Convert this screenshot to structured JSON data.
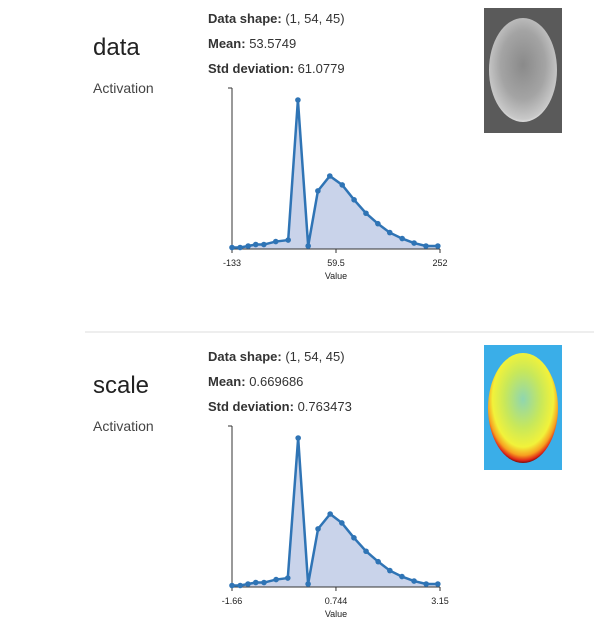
{
  "panels": [
    {
      "name": "data",
      "kind": "Activation",
      "stats": [
        {
          "label": "Data shape:",
          "value": "(1, 54, 45)"
        },
        {
          "label": "Mean:",
          "value": "53.5749"
        },
        {
          "label": "Std deviation:",
          "value": "61.0779"
        }
      ],
      "histogram": {
        "type": "line",
        "x_label": "Value",
        "x": [
          -133,
          -118,
          -103,
          -89,
          -74,
          -52,
          -29,
          -11,
          8,
          26,
          48,
          71,
          93,
          115,
          137,
          159,
          182,
          204,
          226,
          248
        ],
        "values": [
          1,
          1,
          2,
          3,
          3,
          5,
          6,
          100,
          2,
          39,
          49,
          43,
          33,
          24,
          17,
          11,
          7,
          4,
          2,
          2
        ],
        "xlim": [
          -133,
          252
        ],
        "xticks": [
          -133,
          59.5,
          252
        ],
        "ylim": [
          0,
          100
        ],
        "color": "#2f74b5",
        "fill": "#c9d3ea"
      }
    },
    {
      "name": "scale",
      "kind": "Activation",
      "stats": [
        {
          "label": "Data shape:",
          "value": "(1, 54, 45)"
        },
        {
          "label": "Mean:",
          "value": "0.669686"
        },
        {
          "label": "Std deviation:",
          "value": "0.763473"
        }
      ],
      "histogram": {
        "type": "line",
        "x_label": "Value",
        "x": [
          -1.66,
          -1.47,
          -1.29,
          -1.11,
          -0.92,
          -0.64,
          -0.37,
          -0.13,
          0.1,
          0.33,
          0.61,
          0.88,
          1.16,
          1.44,
          1.72,
          1.99,
          2.27,
          2.55,
          2.83,
          3.1
        ],
        "values": [
          1,
          1,
          2,
          3,
          3,
          5,
          6,
          100,
          2,
          39,
          49,
          43,
          33,
          24,
          17,
          11,
          7,
          4,
          2,
          2
        ],
        "xlim": [
          -1.66,
          3.15
        ],
        "xticks": [
          -1.66,
          0.744,
          3.15
        ],
        "ylim": [
          0,
          100
        ],
        "color": "#2f74b5",
        "fill": "#c9d3ea"
      }
    }
  ]
}
